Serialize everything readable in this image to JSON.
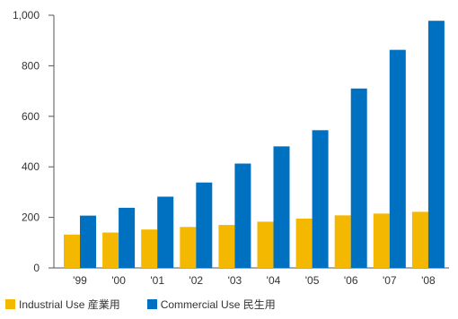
{
  "chart_data": {
    "type": "bar",
    "categories": [
      "'99",
      "'00",
      "'01",
      "'02",
      "'03",
      "'04",
      "'05",
      "'06",
      "'07",
      "'08"
    ],
    "series": [
      {
        "name": "Industrial Use 産業用",
        "color": "#f5b800",
        "values": [
          132,
          140,
          152,
          162,
          170,
          183,
          195,
          208,
          215,
          222
        ]
      },
      {
        "name": "Commercial Use 民生用",
        "color": "#0070c0",
        "values": [
          207,
          238,
          282,
          338,
          413,
          481,
          545,
          710,
          863,
          978
        ]
      }
    ],
    "yticks": [
      0,
      200,
      400,
      600,
      800,
      1000
    ],
    "ytick_labels": [
      "0",
      "200",
      "400",
      "600",
      "800",
      "1,000"
    ],
    "ylim": [
      0,
      1000
    ],
    "grid": false,
    "legend_position": "bottom-left"
  }
}
